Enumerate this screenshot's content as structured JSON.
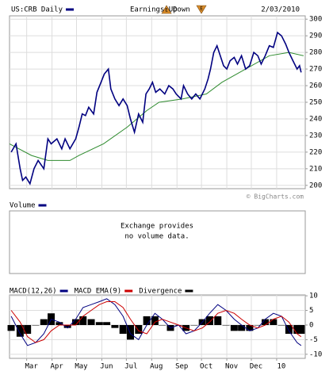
{
  "chart_data": [
    {
      "type": "line",
      "series": [
        {
          "name": "US:CRB Daily",
          "color": "#000080",
          "x": [
            2,
            8,
            13,
            16,
            20,
            25,
            30,
            35,
            42,
            47,
            51,
            58,
            64,
            68,
            74,
            81,
            85,
            89,
            93,
            97,
            103,
            107,
            112,
            116,
            121,
            124,
            129,
            134,
            139,
            144,
            148,
            153,
            158,
            163,
            167,
            171,
            175,
            179,
            184,
            190,
            195,
            200,
            204,
            210,
            213,
            218,
            223,
            228,
            233,
            239,
            243,
            246,
            250,
            254,
            258,
            262,
            266,
            270,
            275,
            279,
            284,
            289,
            294,
            299,
            304,
            308,
            313,
            318,
            323,
            328,
            333,
            338,
            342,
            347,
            352,
            355,
            357
          ],
          "values": [
            220,
            225,
            210,
            203,
            205,
            201,
            210,
            215,
            210,
            228,
            225,
            228,
            222,
            228,
            222,
            228,
            235,
            243,
            242,
            247,
            243,
            256,
            262,
            267,
            270,
            258,
            252,
            248,
            252,
            248,
            240,
            232,
            243,
            238,
            255,
            258,
            262,
            256,
            258,
            255,
            260,
            258,
            255,
            252,
            260,
            255,
            252,
            255,
            252,
            258,
            264,
            270,
            280,
            284,
            278,
            272,
            270,
            275,
            277,
            273,
            278,
            270,
            272,
            280,
            278,
            273,
            278,
            284,
            283,
            292,
            290,
            285,
            280,
            275,
            270,
            272,
            268
          ]
        },
        {
          "color": "#2e8b2e",
          "x": [
            0,
            27,
            47,
            74,
            85,
            115,
            144,
            168,
            183,
            212,
            241,
            260,
            289,
            318,
            342,
            360
          ],
          "values": [
            225,
            218,
            215,
            215,
            218,
            225,
            235,
            245,
            250,
            252,
            255,
            262,
            270,
            278,
            280,
            278
          ]
        }
      ],
      "annotations": [
        "Earnings Up",
        "Down"
      ],
      "date": "2/03/2010",
      "credit": "© BigCharts.com",
      "xlim": [
        0,
        362
      ],
      "ylim": [
        198,
        302
      ],
      "yticks": [
        200,
        210,
        220,
        230,
        240,
        250,
        260,
        270,
        280,
        290,
        300
      ],
      "grid": true
    },
    {
      "type": "note",
      "series": [
        {
          "name": "Volume",
          "color": "#000080"
        }
      ],
      "message": [
        "Exchange provides",
        "no volume data."
      ]
    },
    {
      "type": "macd",
      "series": [
        {
          "name": "MACD(12,26)",
          "color": "#000080",
          "kind": "line",
          "x": [
            2,
            13,
            22,
            32,
            42,
            51,
            61,
            71,
            81,
            90,
            100,
            110,
            119,
            129,
            139,
            148,
            158,
            168,
            178,
            187,
            197,
            207,
            216,
            226,
            236,
            245,
            255,
            265,
            275,
            284,
            294,
            304,
            313,
            323,
            333,
            342,
            352,
            357
          ],
          "values": [
            3,
            -3,
            -7,
            -6,
            -3,
            2,
            1,
            -1,
            2,
            6,
            7,
            8,
            9,
            7,
            3,
            -3,
            -5,
            0,
            4,
            2,
            -1,
            0,
            -3,
            -2,
            1,
            4,
            7,
            5,
            2,
            0,
            -2,
            -1,
            2,
            4,
            3,
            -2,
            -6,
            -7
          ]
        },
        {
          "name": "MACD EMA(9)",
          "color": "#cc0000",
          "kind": "line",
          "x": [
            2,
            13,
            22,
            32,
            42,
            51,
            61,
            71,
            81,
            90,
            100,
            110,
            119,
            129,
            139,
            148,
            158,
            168,
            178,
            187,
            197,
            207,
            216,
            226,
            236,
            245,
            255,
            265,
            275,
            284,
            294,
            304,
            313,
            323,
            333,
            342,
            352,
            357
          ],
          "values": [
            5,
            1,
            -4,
            -6,
            -5,
            -2,
            0,
            0,
            0,
            3,
            5,
            7,
            8,
            8,
            6,
            2,
            -2,
            -3,
            1,
            2,
            1,
            0,
            -1,
            -2,
            -1,
            1,
            4,
            5,
            4,
            2,
            0,
            -1,
            0,
            2,
            3,
            1,
            -3,
            -4
          ]
        },
        {
          "name": "Divergence",
          "color": "#000000",
          "kind": "bar",
          "x": [
            2,
            13,
            22,
            32,
            42,
            51,
            61,
            71,
            81,
            90,
            100,
            110,
            119,
            129,
            139,
            148,
            158,
            168,
            178,
            187,
            197,
            207,
            216,
            226,
            236,
            245,
            255,
            265,
            275,
            284,
            294,
            304,
            313,
            323,
            333,
            342,
            352,
            357
          ],
          "values": [
            -2,
            -4,
            -3,
            0,
            2,
            4,
            1,
            -1,
            2,
            3,
            2,
            1,
            1,
            -1,
            -3,
            -5,
            -3,
            3,
            3,
            0,
            -2,
            0,
            -2,
            0,
            2,
            3,
            3,
            0,
            -2,
            -2,
            -2,
            0,
            2,
            2,
            0,
            -3,
            -3,
            -3
          ]
        }
      ],
      "xlim": [
        0,
        362
      ],
      "xticks": [
        {
          "value": 21,
          "label": "Mar"
        },
        {
          "value": 52,
          "label": "Apr"
        },
        {
          "value": 82,
          "label": "May"
        },
        {
          "value": 113,
          "label": "Jun"
        },
        {
          "value": 143,
          "label": "Jul"
        },
        {
          "value": 174,
          "label": "Aug"
        },
        {
          "value": 205,
          "label": "Sep"
        },
        {
          "value": 235,
          "label": "Oct"
        },
        {
          "value": 266,
          "label": "Nov"
        },
        {
          "value": 296,
          "label": "Dec"
        },
        {
          "value": 327,
          "label": "10"
        }
      ],
      "ylim": [
        -11.4,
        10.3
      ],
      "yticks": [
        10,
        5,
        0,
        -5,
        -10
      ],
      "grid": true
    }
  ]
}
